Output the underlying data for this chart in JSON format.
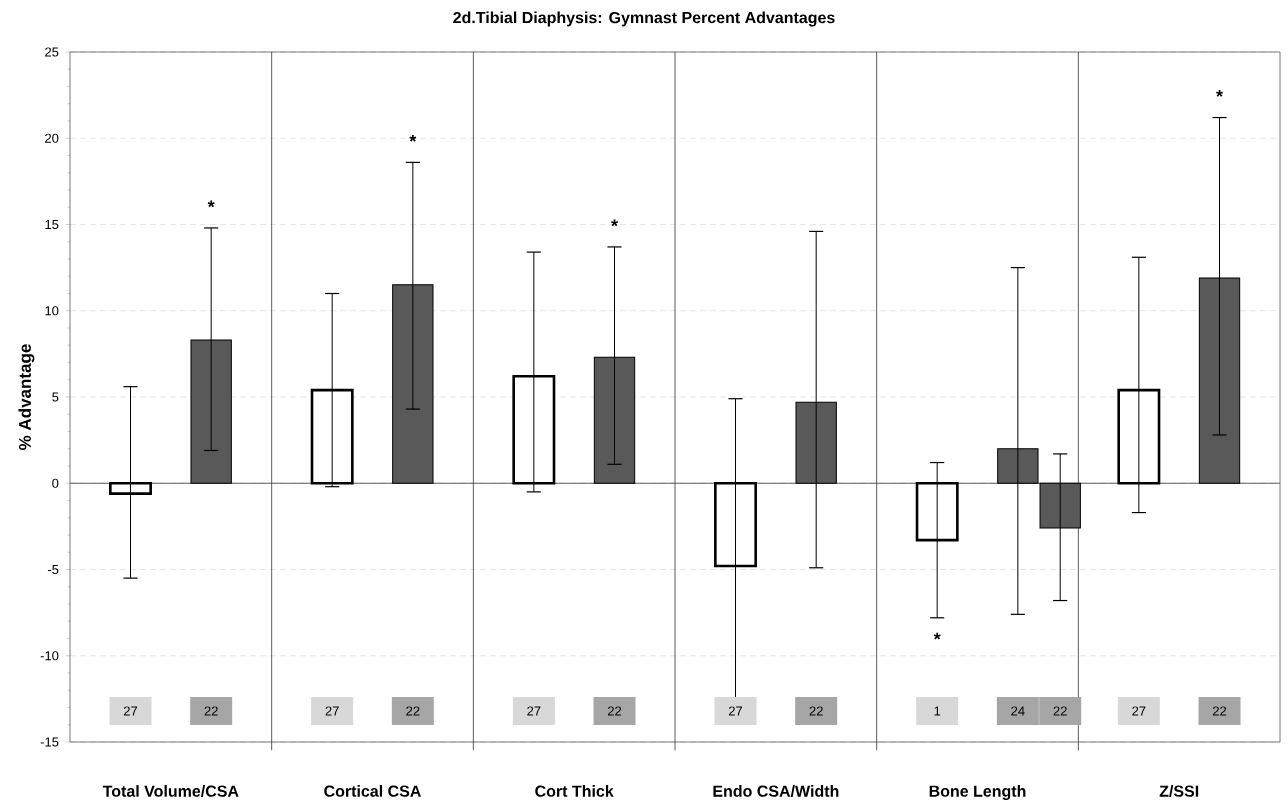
{
  "chart_data": {
    "type": "bar",
    "title": "2d.Tibial Diaphysis: Gymnast Percent Advantages",
    "ylabel": "% Advantage",
    "categories": [
      "Total Volume/CSA",
      "Cortical CSA",
      "Cort Thick",
      "Endo CSA/Width",
      "Bone Length",
      "Z/SSI"
    ],
    "series": [
      {
        "color": "#ffffff",
        "values": [
          -0.6,
          5.4,
          6.2,
          -4.8,
          -3.3,
          5.4
        ],
        "errors": [
          [
            -5.5,
            5.6
          ],
          [
            -0.2,
            11.0
          ],
          [
            -0.5,
            13.4
          ],
          [
            -13.2,
            4.9
          ],
          [
            -7.8,
            1.2
          ],
          [
            -1.7,
            13.1
          ]
        ]
      },
      {
        "color": "#595959",
        "values": [
          8.3,
          11.5,
          7.3,
          4.7,
          2.0,
          11.9
        ],
        "errors": [
          [
            1.9,
            14.8
          ],
          [
            4.3,
            18.6
          ],
          [
            1.1,
            13.7
          ],
          [
            -4.9,
            14.6
          ],
          [
            -7.6,
            12.5
          ],
          [
            2.8,
            21.2
          ]
        ]
      },
      {
        "color": "#595959",
        "values": [
          null,
          null,
          null,
          null,
          -2.6,
          null
        ],
        "errors": [
          null,
          null,
          null,
          null,
          [
            -6.8,
            1.7
          ],
          null
        ]
      }
    ],
    "ylim": [
      -15,
      25
    ],
    "yticks": [
      -15,
      -10,
      -5,
      0,
      5,
      10,
      15,
      20,
      25
    ],
    "grid": "y",
    "annotations": [
      "*",
      "*",
      "*",
      "*",
      "*",
      "27",
      "22",
      "27",
      "22",
      "27",
      "22",
      "27",
      "22",
      "1",
      "24",
      "22",
      "27",
      "22"
    ]
  }
}
